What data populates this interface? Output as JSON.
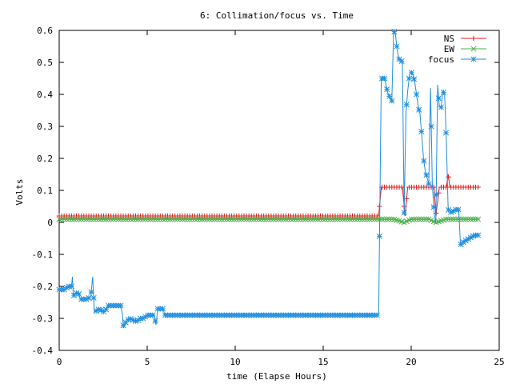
{
  "chart_data": {
    "type": "line",
    "title": "6: Collimation/focus vs. Time",
    "xlabel": "time (Elapse Hours)",
    "ylabel": "Volts",
    "xlim": [
      0,
      25
    ],
    "ylim": [
      -0.4,
      0.6
    ],
    "xticks": [
      0,
      5,
      10,
      15,
      20,
      25
    ],
    "xtick_labels": [
      "0",
      "5",
      "10",
      "15",
      "20",
      "25"
    ],
    "yticks": [
      -0.4,
      -0.3,
      -0.2,
      -0.1,
      0,
      0.1,
      0.2,
      0.3,
      0.4,
      0.5,
      0.6
    ],
    "ytick_labels": [
      "-0.4",
      "-0.3",
      "-0.2",
      "-0.1",
      "0",
      "0.1",
      "0.2",
      "0.3",
      "0.4",
      "0.5",
      "0.6"
    ],
    "grid": false,
    "legend_position": "top-right",
    "series": [
      {
        "name": "NS",
        "color": "#e41a1c",
        "marker": "plus",
        "points": [
          [
            0,
            0.02
          ],
          [
            2,
            0.02
          ],
          [
            4,
            0.02
          ],
          [
            6,
            0.02
          ],
          [
            8,
            0.02
          ],
          [
            10,
            0.02
          ],
          [
            12,
            0.02
          ],
          [
            14,
            0.02
          ],
          [
            16,
            0.02
          ],
          [
            18,
            0.02
          ],
          [
            18.15,
            0.02
          ],
          [
            18.3,
            0.11
          ],
          [
            19,
            0.11
          ],
          [
            19.5,
            0.11
          ],
          [
            19.65,
            0.02
          ],
          [
            19.8,
            0.11
          ],
          [
            20.5,
            0.11
          ],
          [
            21,
            0.11
          ],
          [
            21.3,
            0.11
          ],
          [
            21.4,
            0.02
          ],
          [
            21.6,
            0.11
          ],
          [
            22,
            0.11
          ],
          [
            22.1,
            0.15
          ],
          [
            22.2,
            0.11
          ],
          [
            23,
            0.11
          ],
          [
            23.9,
            0.11
          ]
        ]
      },
      {
        "name": "EW",
        "color": "#4daf4a",
        "marker": "x",
        "points": [
          [
            0,
            0.01
          ],
          [
            3,
            0.01
          ],
          [
            6,
            0.01
          ],
          [
            9,
            0.01
          ],
          [
            12,
            0.01
          ],
          [
            15,
            0.01
          ],
          [
            18,
            0.01
          ],
          [
            18.2,
            0.01
          ],
          [
            19,
            0.01
          ],
          [
            19.6,
            0.0
          ],
          [
            20,
            0.01
          ],
          [
            21,
            0.01
          ],
          [
            21.4,
            0.0
          ],
          [
            22,
            0.01
          ],
          [
            23,
            0.01
          ],
          [
            23.9,
            0.01
          ]
        ]
      },
      {
        "name": "focus",
        "color": "#1f8fe0",
        "marker": "star",
        "points": [
          [
            0,
            -0.21
          ],
          [
            0.3,
            -0.21
          ],
          [
            0.5,
            -0.2
          ],
          [
            0.7,
            -0.2
          ],
          [
            0.75,
            -0.17
          ],
          [
            0.8,
            -0.23
          ],
          [
            1.0,
            -0.22
          ],
          [
            1.1,
            -0.22
          ],
          [
            1.2,
            -0.24
          ],
          [
            1.4,
            -0.24
          ],
          [
            1.6,
            -0.24
          ],
          [
            1.8,
            -0.23
          ],
          [
            1.9,
            -0.17
          ],
          [
            2.0,
            -0.28
          ],
          [
            2.3,
            -0.27
          ],
          [
            2.5,
            -0.28
          ],
          [
            2.7,
            -0.27
          ],
          [
            2.8,
            -0.26
          ],
          [
            3.2,
            -0.26
          ],
          [
            3.5,
            -0.26
          ],
          [
            3.6,
            -0.29
          ],
          [
            3.65,
            -0.33
          ],
          [
            3.8,
            -0.31
          ],
          [
            4.0,
            -0.3
          ],
          [
            4.4,
            -0.31
          ],
          [
            4.6,
            -0.3
          ],
          [
            4.8,
            -0.3
          ],
          [
            5.0,
            -0.29
          ],
          [
            5.4,
            -0.29
          ],
          [
            5.5,
            -0.32
          ],
          [
            5.6,
            -0.27
          ],
          [
            5.9,
            -0.27
          ],
          [
            6.0,
            -0.29
          ],
          [
            8,
            -0.29
          ],
          [
            10,
            -0.29
          ],
          [
            12,
            -0.29
          ],
          [
            14,
            -0.29
          ],
          [
            16,
            -0.29
          ],
          [
            18,
            -0.29
          ],
          [
            18.15,
            -0.29
          ],
          [
            18.3,
            0.45
          ],
          [
            18.5,
            0.45
          ],
          [
            18.6,
            0.42
          ],
          [
            18.7,
            0.4
          ],
          [
            18.8,
            0.39
          ],
          [
            18.9,
            0.38
          ],
          [
            19.0,
            0.6
          ],
          [
            19.1,
            0.59
          ],
          [
            19.2,
            0.54
          ],
          [
            19.3,
            0.51
          ],
          [
            19.4,
            0.51
          ],
          [
            19.5,
            0.5
          ],
          [
            19.6,
            0.03
          ],
          [
            19.7,
            0.34
          ],
          [
            19.8,
            0.41
          ],
          [
            19.9,
            0.46
          ],
          [
            20.0,
            0.47
          ],
          [
            20.1,
            0.46
          ],
          [
            20.2,
            0.44
          ],
          [
            20.3,
            0.4
          ],
          [
            20.4,
            0.36
          ],
          [
            20.5,
            0.34
          ],
          [
            20.6,
            0.27
          ],
          [
            20.7,
            0.2
          ],
          [
            20.8,
            0.16
          ],
          [
            20.9,
            0.14
          ],
          [
            21.0,
            0.12
          ],
          [
            21.1,
            0.42
          ],
          [
            21.2,
            0.12
          ],
          [
            21.3,
            0.03
          ],
          [
            21.4,
            0.0
          ],
          [
            21.5,
            0.43
          ],
          [
            21.6,
            0.36
          ],
          [
            21.7,
            0.36
          ],
          [
            21.8,
            0.41
          ],
          [
            21.9,
            0.4
          ],
          [
            22.0,
            0.25
          ],
          [
            22.1,
            0.04
          ],
          [
            22.3,
            0.03
          ],
          [
            22.5,
            0.04
          ],
          [
            22.7,
            0.04
          ],
          [
            22.8,
            -0.07
          ],
          [
            23.0,
            -0.06
          ],
          [
            23.3,
            -0.05
          ],
          [
            23.6,
            -0.04
          ],
          [
            23.9,
            -0.04
          ]
        ]
      }
    ]
  }
}
